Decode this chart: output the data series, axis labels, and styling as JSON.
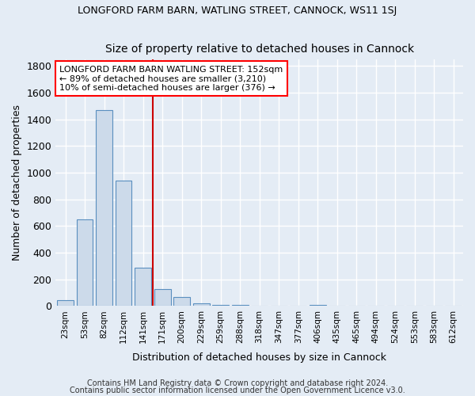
{
  "title1": "LONGFORD FARM BARN, WATLING STREET, CANNOCK, WS11 1SJ",
  "title2": "Size of property relative to detached houses in Cannock",
  "xlabel": "Distribution of detached houses by size in Cannock",
  "ylabel": "Number of detached properties",
  "bar_color": "#ccdaea",
  "bar_edge_color": "#5a8fbf",
  "background_color": "#e4ecf5",
  "grid_color": "#ffffff",
  "fig_facecolor": "#e4ecf5",
  "categories": [
    "23sqm",
    "53sqm",
    "82sqm",
    "112sqm",
    "141sqm",
    "171sqm",
    "200sqm",
    "229sqm",
    "259sqm",
    "288sqm",
    "318sqm",
    "347sqm",
    "377sqm",
    "406sqm",
    "435sqm",
    "465sqm",
    "494sqm",
    "524sqm",
    "553sqm",
    "583sqm",
    "612sqm"
  ],
  "values": [
    45,
    650,
    1470,
    940,
    290,
    130,
    65,
    20,
    10,
    10,
    0,
    0,
    0,
    10,
    0,
    0,
    0,
    0,
    0,
    0,
    0
  ],
  "ylim": [
    0,
    1850
  ],
  "yticks": [
    0,
    200,
    400,
    600,
    800,
    1000,
    1200,
    1400,
    1600,
    1800
  ],
  "red_line_x": 4.5,
  "annotation_text": "LONGFORD FARM BARN WATLING STREET: 152sqm\n← 89% of detached houses are smaller (3,210)\n10% of semi-detached houses are larger (376) →",
  "footnote1": "Contains HM Land Registry data © Crown copyright and database right 2024.",
  "footnote2": "Contains public sector information licensed under the Open Government Licence v3.0."
}
